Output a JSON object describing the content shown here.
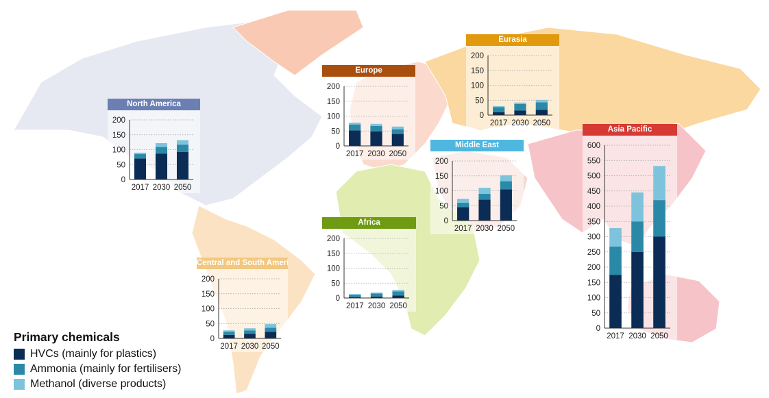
{
  "colors": {
    "hvc": "#0b2c55",
    "ammonia": "#2b89a8",
    "methanol": "#7ec3dc",
    "ocean": "#ffffff"
  },
  "legend": {
    "title": "Primary chemicals",
    "items": [
      {
        "label": "HVCs (mainly for plastics)",
        "color": "#0b2c55"
      },
      {
        "label": "Ammonia (mainly for fertilisers)",
        "color": "#2b89a8"
      },
      {
        "label": "Methanol (diverse products)",
        "color": "#7ec3dc"
      }
    ]
  },
  "chart_data": [
    {
      "type": "bar",
      "stacked": true,
      "title": "North America",
      "header_color": "#6b7fb3",
      "region_fill": "#e6e9f2",
      "categories": [
        "2017",
        "2030",
        "2050"
      ],
      "ylim": [
        0,
        200
      ],
      "yticks": [
        0,
        50,
        100,
        150,
        200
      ],
      "series": [
        {
          "name": "HVCs",
          "values": [
            70,
            87,
            92
          ]
        },
        {
          "name": "Ammonia",
          "values": [
            15,
            22,
            25
          ]
        },
        {
          "name": "Methanol",
          "values": [
            5,
            13,
            15
          ]
        }
      ]
    },
    {
      "type": "bar",
      "stacked": true,
      "title": "Europe",
      "header_color": "#a94e0d",
      "region_fill": "#fbd9cc",
      "categories": [
        "2017",
        "2030",
        "2050"
      ],
      "ylim": [
        0,
        200
      ],
      "yticks": [
        0,
        50,
        100,
        150,
        200
      ],
      "series": [
        {
          "name": "HVCs",
          "values": [
            52,
            49,
            40
          ]
        },
        {
          "name": "Ammonia",
          "values": [
            20,
            18,
            16
          ]
        },
        {
          "name": "Methanol",
          "values": [
            6,
            7,
            9
          ]
        }
      ]
    },
    {
      "type": "bar",
      "stacked": true,
      "title": "Eurasia",
      "header_color": "#e19a0e",
      "region_fill": "#fbd8a0",
      "categories": [
        "2017",
        "2030",
        "2050"
      ],
      "ylim": [
        0,
        200
      ],
      "yticks": [
        0,
        50,
        100,
        150,
        200
      ],
      "series": [
        {
          "name": "HVCs",
          "values": [
            10,
            15,
            18
          ]
        },
        {
          "name": "Ammonia",
          "values": [
            17,
            22,
            25
          ]
        },
        {
          "name": "Methanol",
          "values": [
            3,
            5,
            8
          ]
        }
      ]
    },
    {
      "type": "bar",
      "stacked": true,
      "title": "Middle East",
      "header_color": "#4fb7df",
      "region_fill": "#f5d9d0",
      "categories": [
        "2017",
        "2030",
        "2050"
      ],
      "ylim": [
        0,
        200
      ],
      "yticks": [
        0,
        50,
        100,
        150,
        200
      ],
      "series": [
        {
          "name": "HVCs",
          "values": [
            45,
            70,
            105
          ]
        },
        {
          "name": "Ammonia",
          "values": [
            15,
            20,
            27
          ]
        },
        {
          "name": "Methanol",
          "values": [
            13,
            20,
            20
          ]
        }
      ]
    },
    {
      "type": "bar",
      "stacked": true,
      "title": "Africa",
      "header_color": "#6e9b12",
      "region_fill": "#e0ecb0",
      "categories": [
        "2017",
        "2030",
        "2050"
      ],
      "ylim": [
        0,
        200
      ],
      "yticks": [
        0,
        50,
        100,
        150,
        200
      ],
      "series": [
        {
          "name": "HVCs",
          "values": [
            3,
            5,
            8
          ]
        },
        {
          "name": "Ammonia",
          "values": [
            8,
            10,
            14
          ]
        },
        {
          "name": "Methanol",
          "values": [
            2,
            3,
            5
          ]
        }
      ]
    },
    {
      "type": "bar",
      "stacked": true,
      "title": "Central and South America",
      "header_color": "#f2c77f",
      "region_fill": "#fbe2c2",
      "categories": [
        "2017",
        "2030",
        "2050"
      ],
      "ylim": [
        0,
        200
      ],
      "yticks": [
        0,
        50,
        100,
        150,
        200
      ],
      "series": [
        {
          "name": "HVCs",
          "values": [
            12,
            15,
            22
          ]
        },
        {
          "name": "Ammonia",
          "values": [
            10,
            12,
            14
          ]
        },
        {
          "name": "Methanol",
          "values": [
            5,
            7,
            12
          ]
        }
      ]
    },
    {
      "type": "bar",
      "stacked": true,
      "title": "Asia Pacific",
      "header_color": "#d63a32",
      "region_fill": "#f6c4c8",
      "categories": [
        "2017",
        "2030",
        "2050"
      ],
      "ylim": [
        0,
        600
      ],
      "yticks": [
        0,
        50,
        100,
        150,
        200,
        250,
        300,
        350,
        400,
        450,
        500,
        550,
        600
      ],
      "series": [
        {
          "name": "HVCs",
          "values": [
            175,
            250,
            300
          ]
        },
        {
          "name": "Ammonia",
          "values": [
            93,
            100,
            120
          ]
        },
        {
          "name": "Methanol",
          "values": [
            60,
            95,
            112
          ]
        }
      ]
    }
  ]
}
